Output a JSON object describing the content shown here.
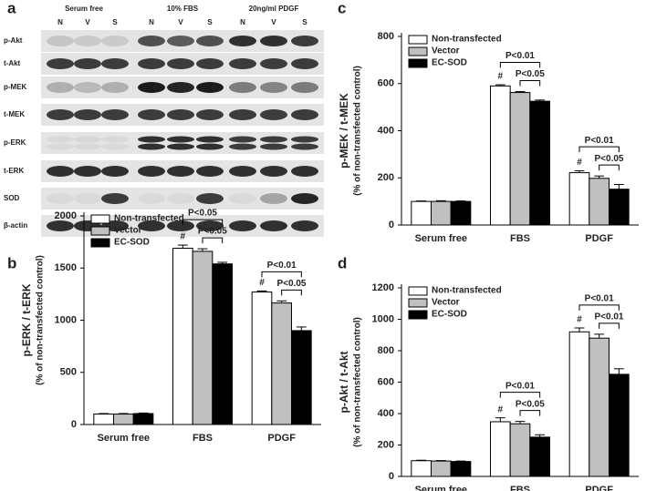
{
  "blot": {
    "panel": "a",
    "groups": [
      "Serum free",
      "10% FBS",
      "20ng/ml PDGF"
    ],
    "lanes": [
      "N",
      "V",
      "S",
      "N",
      "V",
      "S",
      "N",
      "V",
      "S"
    ],
    "rows": [
      "p-Akt",
      "t-Akt",
      "p-MEK",
      "t-MEK",
      "p-ERK",
      "t-ERK",
      "SOD",
      "β-actin"
    ]
  },
  "chart_data": [
    {
      "type": "bar",
      "panel": "b",
      "ylabel": "p-ERK / t-ERK",
      "ylabel2": "(% of non-transfected control)",
      "categories": [
        "Serum free",
        "FBS",
        "PDGF"
      ],
      "series": [
        {
          "name": "Non-transfected",
          "color": "#ffffff",
          "values": [
            100,
            1690,
            1270
          ],
          "errors": [
            5,
            30,
            10
          ]
        },
        {
          "name": "Vector",
          "color": "#c0c0c0",
          "values": [
            100,
            1660,
            1165
          ],
          "errors": [
            5,
            25,
            20
          ]
        },
        {
          "name": "EC-SOD",
          "color": "#000000",
          "values": [
            105,
            1540,
            900
          ],
          "errors": [
            5,
            15,
            35
          ]
        }
      ],
      "ylim": [
        0,
        2000
      ],
      "yticks": [
        0,
        500,
        1000,
        1500,
        2000
      ],
      "legend": "top-left",
      "annotations": [
        {
          "text": "P<0.05",
          "category": 1,
          "from": 0,
          "to": 2
        },
        {
          "text": "P<0.05",
          "category": 1,
          "from": 1,
          "to": 2
        },
        {
          "text": "P<0.01",
          "category": 2,
          "from": 0,
          "to": 2
        },
        {
          "text": "P<0.05",
          "category": 2,
          "from": 1,
          "to": 2
        }
      ],
      "markers": [
        {
          "text": "#",
          "category": 1,
          "series": 0
        },
        {
          "text": "#",
          "category": 2,
          "series": 0
        }
      ]
    },
    {
      "type": "bar",
      "panel": "c",
      "ylabel": "p-MEK / t-MEK",
      "ylabel2": "(% of non-transfected control)",
      "categories": [
        "Serum free",
        "FBS",
        "PDGF"
      ],
      "series": [
        {
          "name": "Non-transfected",
          "color": "#ffffff",
          "values": [
            100,
            590,
            222
          ],
          "errors": [
            2,
            5,
            8
          ]
        },
        {
          "name": "Vector",
          "color": "#c0c0c0",
          "values": [
            100,
            562,
            198
          ],
          "errors": [
            3,
            4,
            10
          ]
        },
        {
          "name": "EC-SOD",
          "color": "#000000",
          "values": [
            100,
            525,
            152
          ],
          "errors": [
            2,
            5,
            20
          ]
        }
      ],
      "ylim": [
        0,
        800
      ],
      "yticks": [
        0,
        200,
        400,
        600,
        800
      ],
      "legend": "top-left",
      "annotations": [
        {
          "text": "P<0.01",
          "category": 1,
          "from": 0,
          "to": 2
        },
        {
          "text": "P<0.05",
          "category": 1,
          "from": 1,
          "to": 2
        },
        {
          "text": "P<0.01",
          "category": 2,
          "from": 0,
          "to": 2
        },
        {
          "text": "P<0.05",
          "category": 2,
          "from": 1,
          "to": 2
        }
      ],
      "markers": [
        {
          "text": "#",
          "category": 1,
          "series": 0
        },
        {
          "text": "#",
          "category": 2,
          "series": 0
        }
      ]
    },
    {
      "type": "bar",
      "panel": "d",
      "ylabel": "p-Akt / t-Akt",
      "ylabel2": "(% of non-transfected control)",
      "categories": [
        "Serum free",
        "FBS",
        "PDGF"
      ],
      "series": [
        {
          "name": "Non-transfected",
          "color": "#ffffff",
          "values": [
            100,
            348,
            920
          ],
          "errors": [
            3,
            25,
            25
          ]
        },
        {
          "name": "Vector",
          "color": "#c0c0c0",
          "values": [
            98,
            335,
            880
          ],
          "errors": [
            3,
            15,
            25
          ]
        },
        {
          "name": "EC-SOD",
          "color": "#000000",
          "values": [
            95,
            250,
            650
          ],
          "errors": [
            3,
            15,
            35
          ]
        }
      ],
      "ylim": [
        0,
        1200
      ],
      "yticks": [
        0,
        200,
        400,
        600,
        800,
        1000,
        1200
      ],
      "legend": "top-left",
      "annotations": [
        {
          "text": "P<0.01",
          "category": 1,
          "from": 0,
          "to": 2
        },
        {
          "text": "P<0.05",
          "category": 1,
          "from": 1,
          "to": 2
        },
        {
          "text": "P<0.01",
          "category": 2,
          "from": 0,
          "to": 2
        },
        {
          "text": "P<0.01",
          "category": 2,
          "from": 1,
          "to": 2
        }
      ],
      "markers": [
        {
          "text": "#",
          "category": 1,
          "series": 0
        },
        {
          "text": "#",
          "category": 2,
          "series": 0
        }
      ]
    }
  ]
}
